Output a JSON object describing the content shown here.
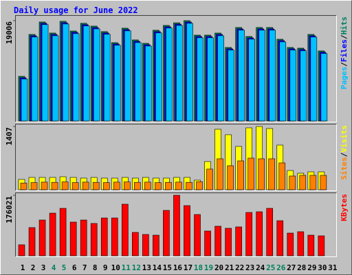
{
  "chart_data": [
    {
      "type": "bar",
      "title": "Daily usage for June 2022",
      "legend_separator": "/",
      "categories": [
        "1",
        "2",
        "3",
        "4",
        "5",
        "6",
        "7",
        "8",
        "9",
        "10",
        "11",
        "12",
        "13",
        "14",
        "15",
        "16",
        "17",
        "18",
        "19",
        "20",
        "21",
        "22",
        "23",
        "24",
        "25",
        "26",
        "27",
        "28",
        "29",
        "30",
        "31"
      ],
      "category_colors": [
        "#000000",
        "#000000",
        "#000000",
        "#00805C",
        "#00805C",
        "#000000",
        "#000000",
        "#000000",
        "#000000",
        "#000000",
        "#00805C",
        "#00805C",
        "#000000",
        "#000000",
        "#000000",
        "#000000",
        "#000000",
        "#00805C",
        "#00805C",
        "#000000",
        "#000000",
        "#000000",
        "#000000",
        "#000000",
        "#00805C",
        "#00805C",
        "#000000",
        "#000000",
        "#000000",
        "#000000",
        "#000000"
      ],
      "ylim": [
        0,
        19006
      ],
      "yticks": [
        19006
      ],
      "series": [
        {
          "name": "Hits",
          "color": "#00805C",
          "values": [
            8460,
            16400,
            18750,
            16660,
            18880,
            17050,
            18500,
            17970,
            16930,
            14840,
            17580,
            15360,
            14710,
            17190,
            18100,
            18600,
            19006,
            16270,
            16270,
            16660,
            13930,
            17710,
            16010,
            17710,
            17710,
            15490,
            13930,
            13800,
            16400,
            13280,
            null
          ]
        },
        {
          "name": "Files",
          "color": "#0000FF",
          "values": [
            8200,
            16150,
            18500,
            16400,
            18620,
            16800,
            18250,
            17700,
            16680,
            14600,
            17320,
            15100,
            14450,
            16930,
            17850,
            18350,
            18750,
            16020,
            16020,
            16400,
            13680,
            17450,
            15750,
            17450,
            17450,
            15230,
            13680,
            13550,
            16150,
            13030,
            null
          ]
        },
        {
          "name": "Pages",
          "color": "#00C0FF",
          "values": [
            7950,
            15900,
            18250,
            16150,
            18370,
            16550,
            18000,
            17450,
            16430,
            14350,
            17070,
            14850,
            14200,
            16680,
            17600,
            18100,
            18500,
            15770,
            15770,
            16150,
            13430,
            17200,
            15500,
            17200,
            17200,
            14980,
            13430,
            13300,
            15900,
            12780,
            null
          ]
        }
      ]
    },
    {
      "type": "bar",
      "ylim": [
        0,
        1407
      ],
      "yticks": [
        1407
      ],
      "series": [
        {
          "name": "Visits",
          "color": "#FFFF00",
          "values": [
            230,
            275,
            275,
            275,
            290,
            275,
            260,
            275,
            260,
            260,
            275,
            260,
            275,
            260,
            260,
            275,
            275,
            214,
            627,
            1346,
            1224,
            964,
            1377,
            1407,
            1362,
            994,
            428,
            367,
            398,
            398,
            null
          ]
        },
        {
          "name": "Sites",
          "color": "#FF8000",
          "values": [
            150,
            160,
            170,
            165,
            175,
            160,
            170,
            165,
            160,
            170,
            175,
            165,
            170,
            160,
            165,
            170,
            165,
            180,
            460,
            689,
            535,
            643,
            704,
            689,
            689,
            597,
            306,
            321,
            321,
            321,
            null
          ]
        }
      ]
    },
    {
      "type": "bar",
      "ylim": [
        0,
        176021
      ],
      "yticks": [
        176021
      ],
      "series": [
        {
          "name": "KBytes",
          "color": "#FF0000",
          "values": [
            32000,
            82000,
            104000,
            124000,
            138000,
            98000,
            104000,
            94000,
            110000,
            110000,
            150000,
            68000,
            62000,
            60000,
            132000,
            176021,
            146000,
            120000,
            72000,
            86000,
            80000,
            84000,
            126000,
            128000,
            138000,
            102000,
            66000,
            70000,
            60000,
            58000,
            null
          ]
        }
      ]
    }
  ]
}
